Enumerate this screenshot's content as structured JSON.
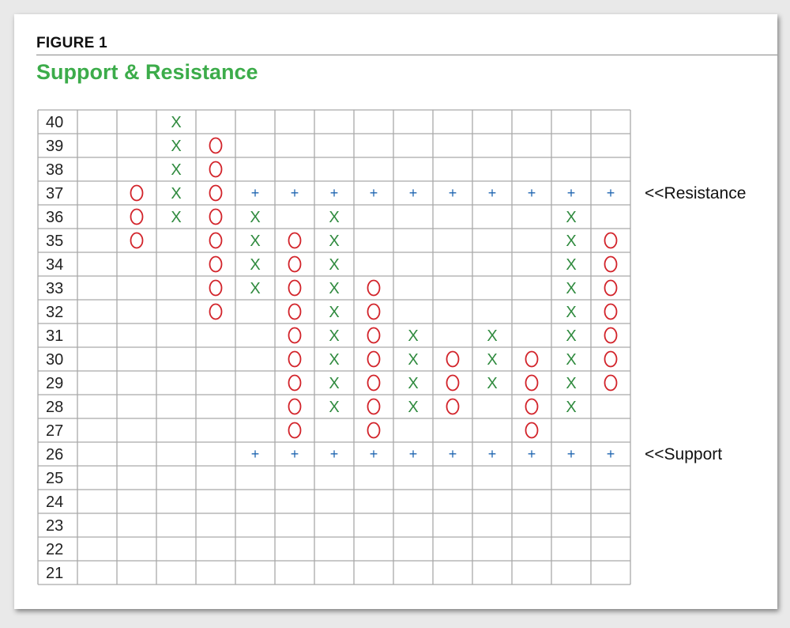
{
  "header": {
    "figure_label": "FIGURE 1",
    "title": "Support & Resistance"
  },
  "colors": {
    "x_mark": "#2f8a3e",
    "o_mark": "#d2232a",
    "plus_mark": "#1f66b0",
    "grid": "#a9a9a9",
    "title": "#3cac4a"
  },
  "chart_data": {
    "type": "table",
    "chart_kind": "point-and-figure",
    "title": "Support & Resistance",
    "prices": [
      40,
      39,
      38,
      37,
      36,
      35,
      34,
      33,
      32,
      31,
      30,
      29,
      28,
      27,
      26,
      25,
      24,
      23,
      22,
      21
    ],
    "num_columns": 14,
    "columns": [
      {
        "col": 1,
        "mark": "",
        "prices": []
      },
      {
        "col": 2,
        "mark": "O",
        "prices": [
          37,
          36,
          35
        ]
      },
      {
        "col": 3,
        "mark": "X",
        "prices": [
          40,
          39,
          38,
          37,
          36
        ]
      },
      {
        "col": 4,
        "mark": "O",
        "prices": [
          39,
          38,
          37,
          36,
          35,
          34,
          33,
          32
        ]
      },
      {
        "col": 5,
        "mark": "X",
        "prices": [
          36,
          35,
          34,
          33
        ]
      },
      {
        "col": 6,
        "mark": "O",
        "prices": [
          35,
          34,
          33,
          32,
          31,
          30,
          29,
          28,
          27
        ]
      },
      {
        "col": 7,
        "mark": "X",
        "prices": [
          36,
          35,
          34,
          33,
          32,
          31,
          30,
          29,
          28
        ]
      },
      {
        "col": 8,
        "mark": "O",
        "prices": [
          33,
          32,
          31,
          30,
          29,
          28,
          27
        ]
      },
      {
        "col": 9,
        "mark": "X",
        "prices": [
          31,
          30,
          29,
          28
        ]
      },
      {
        "col": 10,
        "mark": "O",
        "prices": [
          30,
          29,
          28
        ]
      },
      {
        "col": 11,
        "mark": "X",
        "prices": [
          31,
          30,
          29
        ]
      },
      {
        "col": 12,
        "mark": "O",
        "prices": [
          30,
          29,
          28,
          27
        ]
      },
      {
        "col": 13,
        "mark": "X",
        "prices": [
          36,
          35,
          34,
          33,
          32,
          31,
          30,
          29,
          28
        ]
      },
      {
        "col": 14,
        "mark": "O",
        "prices": [
          35,
          34,
          33,
          32,
          31,
          30,
          29
        ]
      }
    ],
    "lines": [
      {
        "name": "Resistance",
        "label": "<<Resistance",
        "price": 37,
        "from_col": 5,
        "to_col": 14,
        "mark": "+"
      },
      {
        "name": "Support",
        "label": "<<Support",
        "price": 26,
        "from_col": 5,
        "to_col": 14,
        "mark": "+"
      }
    ]
  }
}
